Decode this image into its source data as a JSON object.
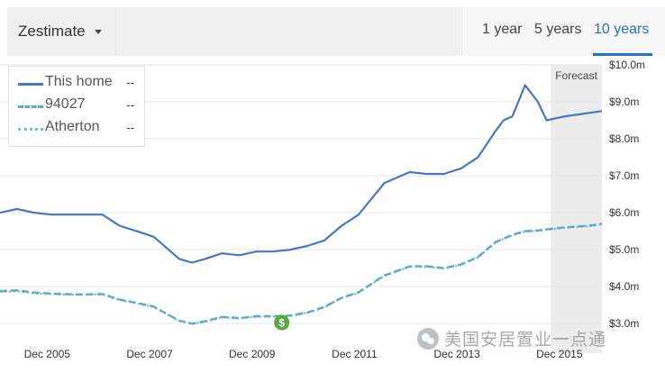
{
  "header": {
    "dropdown_label": "Zestimate",
    "tabs": [
      {
        "label": "1 year",
        "active": false
      },
      {
        "label": "5 years",
        "active": false
      },
      {
        "label": "10 years",
        "active": true
      }
    ]
  },
  "legend": {
    "items": [
      {
        "name": "This home",
        "value": "--",
        "color": "#4a76c0",
        "style": "solid"
      },
      {
        "name": "94027",
        "value": "--",
        "color": "#5da8cc",
        "style": "dashed"
      },
      {
        "name": "Atherton",
        "value": "--",
        "color": "#72c0c0",
        "style": "dotted"
      }
    ]
  },
  "forecast_label": "Forecast",
  "watermark": {
    "text": "美国安居置业一点通",
    "icon": "wechat-icon"
  },
  "event_marker": {
    "icon": "dollar-sign-icon",
    "color": "#56a842"
  },
  "colors": {
    "accent": "#2b70c9",
    "forecast_band": "#ececec",
    "grid": "#e6e6e6"
  },
  "chart_data": {
    "type": "line",
    "x": [
      2005.0,
      2005.33,
      2005.67,
      2006.0,
      2006.5,
      2007.0,
      2007.33,
      2007.67,
      2008.0,
      2008.5,
      2008.75,
      2009.0,
      2009.33,
      2009.67,
      2010.0,
      2010.33,
      2010.67,
      2011.0,
      2011.33,
      2011.67,
      2012.0,
      2012.5,
      2013.0,
      2013.33,
      2013.67,
      2014.0,
      2014.33,
      2014.67,
      2014.83,
      2015.0,
      2015.25,
      2015.5,
      2015.67,
      2016.0,
      2016.5,
      2016.75
    ],
    "x_tick_labels": [
      "Dec 2005",
      "Dec 2007",
      "Dec 2009",
      "Dec 2011",
      "Dec 2013",
      "Dec 2015"
    ],
    "x_ticks": [
      2005.92,
      2007.92,
      2009.92,
      2011.92,
      2013.92,
      2015.92
    ],
    "series": [
      {
        "name": "This home",
        "values": [
          6.0,
          6.1,
          6.0,
          5.95,
          5.95,
          5.95,
          5.65,
          5.5,
          5.35,
          4.75,
          4.65,
          4.75,
          4.9,
          4.85,
          4.95,
          4.95,
          5.0,
          5.1,
          5.25,
          5.65,
          5.95,
          6.8,
          7.1,
          7.05,
          7.05,
          7.2,
          7.5,
          8.2,
          8.5,
          8.6,
          9.45,
          9.0,
          8.5,
          8.6,
          8.7,
          8.75
        ]
      },
      {
        "name": "94027",
        "values": [
          3.88,
          3.9,
          3.84,
          3.81,
          3.79,
          3.8,
          3.65,
          3.56,
          3.46,
          3.08,
          3.0,
          3.06,
          3.18,
          3.15,
          3.2,
          3.2,
          3.22,
          3.3,
          3.45,
          3.7,
          3.85,
          4.3,
          4.55,
          4.55,
          4.5,
          4.6,
          4.8,
          5.2,
          5.3,
          5.4,
          5.5,
          5.52,
          5.55,
          5.6,
          5.65,
          5.7
        ]
      },
      {
        "name": "Atherton",
        "values": [
          3.86,
          3.88,
          3.82,
          3.8,
          3.78,
          3.79,
          3.64,
          3.55,
          3.45,
          3.07,
          2.99,
          3.05,
          3.17,
          3.14,
          3.19,
          3.19,
          3.21,
          3.29,
          3.44,
          3.69,
          3.84,
          4.29,
          4.54,
          4.54,
          4.49,
          4.59,
          4.79,
          5.19,
          5.29,
          5.39,
          5.49,
          5.51,
          5.54,
          5.59,
          5.64,
          5.69
        ]
      }
    ],
    "y_ticks": [
      3,
      4,
      5,
      6,
      7,
      8,
      9,
      10
    ],
    "y_tick_labels": [
      "$3.0m",
      "$4.0m",
      "$5.0m",
      "$6.0m",
      "$7.0m",
      "$8.0m",
      "$9.0m",
      "$10.0m"
    ],
    "ylim": [
      2.2,
      10.0
    ],
    "xlim": [
      2005.0,
      2016.75
    ],
    "forecast_start": 2015.75,
    "event_marker_x": 2010.5,
    "grid": true
  }
}
